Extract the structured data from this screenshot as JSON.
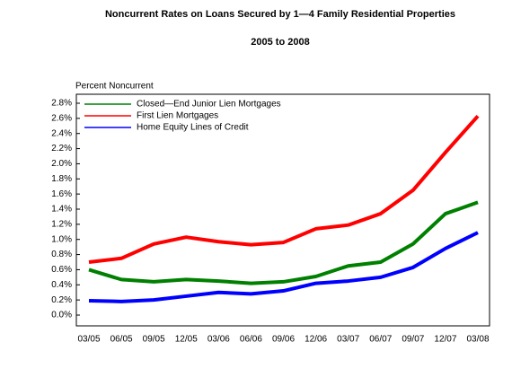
{
  "chart_data": {
    "type": "line",
    "title": "Noncurrent Rates on Loans Secured by 1—4 Family Residential Properties",
    "subtitle": "2005 to 2008",
    "y_label": "Percent Noncurrent",
    "categories": [
      "03/05",
      "06/05",
      "09/05",
      "12/05",
      "03/06",
      "06/06",
      "09/06",
      "12/06",
      "03/07",
      "06/07",
      "09/07",
      "12/07",
      "03/08"
    ],
    "series": [
      {
        "name": "Closed—End Junior Lien Mortgages",
        "color": "#008000",
        "values": [
          0.6,
          0.47,
          0.44,
          0.47,
          0.45,
          0.42,
          0.44,
          0.51,
          0.65,
          0.7,
          0.94,
          1.34,
          1.49
        ]
      },
      {
        "name": "First Lien Mortgages",
        "color": "#ff0000",
        "values": [
          0.7,
          0.75,
          0.94,
          1.03,
          0.97,
          0.93,
          0.96,
          1.14,
          1.19,
          1.34,
          1.65,
          2.15,
          2.63
        ]
      },
      {
        "name": "Home Equity Lines of Credit",
        "color": "#0000ff",
        "values": [
          0.19,
          0.18,
          0.2,
          0.25,
          0.3,
          0.28,
          0.32,
          0.42,
          0.45,
          0.5,
          0.63,
          0.88,
          1.09
        ]
      }
    ],
    "ylim": [
      0,
      2.8
    ],
    "yticks": [
      {
        "value": 0,
        "label": "0.0%"
      },
      {
        "value": 0.2,
        "label": "0.2%"
      },
      {
        "value": 0.4,
        "label": "0.4%"
      },
      {
        "value": 0.6,
        "label": "0.6%"
      },
      {
        "value": 0.8,
        "label": "0.8%"
      },
      {
        "value": 1.0,
        "label": "1.0%"
      },
      {
        "value": 1.2,
        "label": "1.2%"
      },
      {
        "value": 1.4,
        "label": "1.4%"
      },
      {
        "value": 1.6,
        "label": "1.6%"
      },
      {
        "value": 1.8,
        "label": "1.8%"
      },
      {
        "value": 2.0,
        "label": "2.0%"
      },
      {
        "value": 2.2,
        "label": "2.2%"
      },
      {
        "value": 2.4,
        "label": "2.4%"
      },
      {
        "value": 2.6,
        "label": "2.6%"
      },
      {
        "value": 2.8,
        "label": "2.8%"
      }
    ],
    "grid": false,
    "legend": "top-left"
  }
}
